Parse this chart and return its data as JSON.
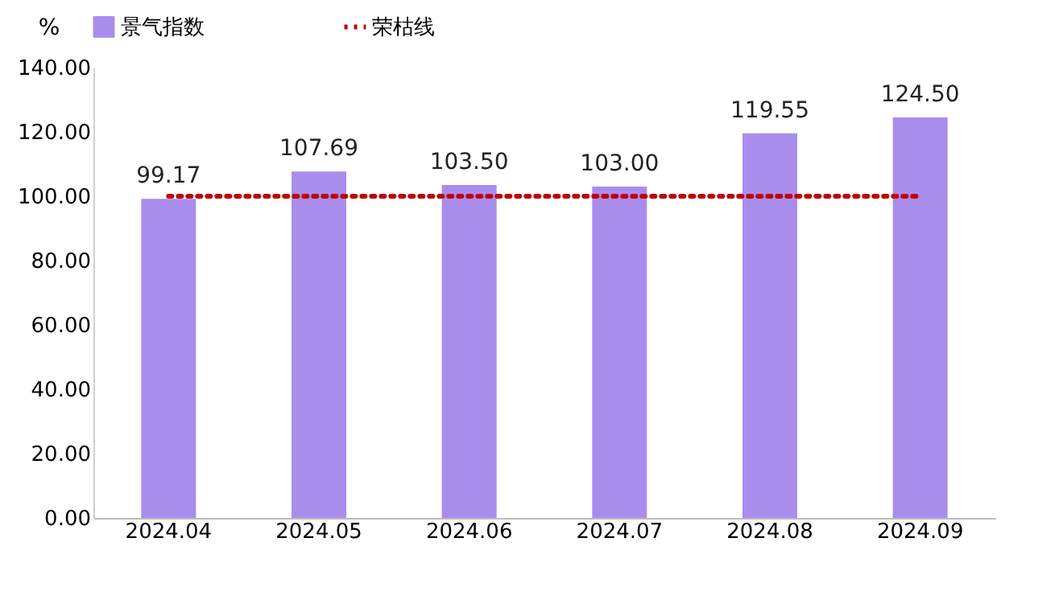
{
  "chart_data": {
    "type": "bar",
    "ylabel": "%",
    "categories": [
      "2024.04",
      "2024.05",
      "2024.06",
      "2024.07",
      "2024.08",
      "2024.09"
    ],
    "series": [
      {
        "name": "景气指数",
        "color": "#a98ded",
        "values": [
          99.17,
          107.69,
          103.5,
          103,
          119.55,
          124.5
        ],
        "value_labels": [
          "99.17",
          "107.69",
          "103.50",
          "103.00",
          "119.55",
          "124.50"
        ]
      }
    ],
    "ylim": [
      0,
      140
    ],
    "yticks": [
      {
        "value": 0,
        "label": "0.00"
      },
      {
        "value": 20,
        "label": "20.00"
      },
      {
        "value": 40,
        "label": "40.00"
      },
      {
        "value": 60,
        "label": "60.00"
      },
      {
        "value": 80,
        "label": "80.00"
      },
      {
        "value": 100,
        "label": "100.00"
      },
      {
        "value": 120,
        "label": "120.00"
      },
      {
        "value": 140,
        "label": "140.00"
      }
    ],
    "ref_lines": [
      {
        "axis": "y",
        "value": 100,
        "label": "荣枯线",
        "color": "#c00000",
        "line_style": "dotted"
      }
    ],
    "grid": false,
    "legend": "top"
  }
}
